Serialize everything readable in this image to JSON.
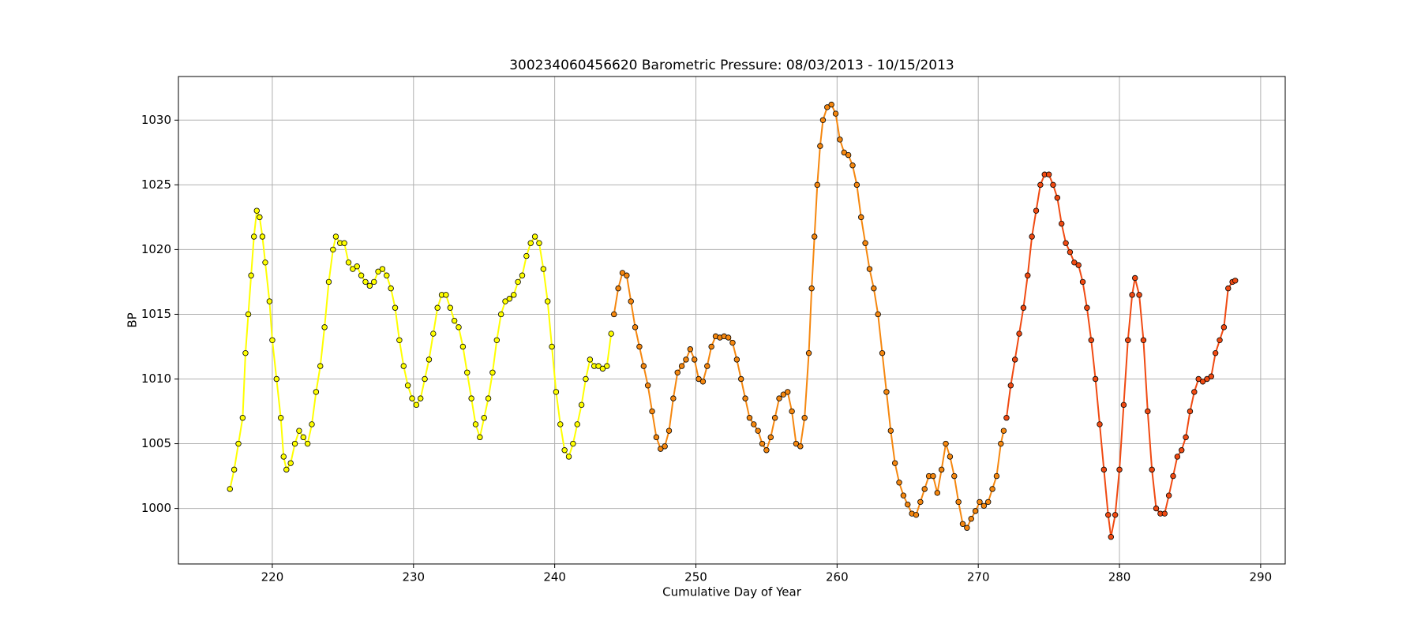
{
  "chart_data": {
    "type": "scatter_line",
    "title": "300234060456620 Barometric Pressure: 08/03/2013 - 10/15/2013",
    "x_label": "Cumulative Day of Year",
    "y_label": "BP",
    "xlim": [
      213.35,
      291.74
    ],
    "xticks": [
      220,
      230,
      240,
      250,
      260,
      270,
      280,
      290
    ],
    "ylim": [
      995.71,
      1033.37
    ],
    "yticks": [
      1000,
      1005,
      1010,
      1015,
      1020,
      1025,
      1030
    ],
    "grid": true,
    "series": [
      {
        "color": "#ffff00",
        "x": [
          217.0,
          217.3,
          217.6,
          217.9,
          218.1,
          218.3,
          218.5,
          218.7,
          218.9,
          219.1,
          219.3,
          219.5,
          219.8,
          220.0,
          220.3,
          220.6,
          220.8,
          221.0,
          221.3,
          221.6,
          221.9,
          222.2,
          222.5,
          222.8,
          223.1,
          223.4,
          223.7,
          224.0,
          224.3,
          224.5,
          224.8,
          225.1,
          225.4,
          225.7,
          226.0,
          226.3,
          226.6,
          226.9,
          227.2,
          227.5,
          227.8,
          228.1,
          228.4,
          228.7,
          229.0,
          229.3,
          229.6,
          229.9,
          230.2,
          230.5,
          230.8,
          231.1,
          231.4,
          231.7,
          232.0,
          232.3,
          232.6,
          232.9,
          233.2,
          233.5,
          233.8,
          234.1,
          234.4,
          234.7,
          235.0,
          235.3,
          235.6,
          235.9,
          236.2,
          236.5,
          236.8,
          237.1,
          237.4,
          237.7,
          238.0,
          238.3,
          238.6,
          238.9,
          239.2,
          239.5,
          239.8,
          240.1,
          240.4,
          240.7,
          241.0,
          241.3,
          241.6,
          241.9,
          242.2,
          242.5,
          242.8,
          243.1,
          243.4,
          243.7,
          244.0
        ],
        "values": [
          1001.5,
          1003,
          1005,
          1007,
          1012,
          1015,
          1018,
          1021,
          1023,
          1022.5,
          1021,
          1019,
          1016,
          1013,
          1010,
          1007,
          1004,
          1003,
          1003.5,
          1005,
          1006,
          1005.5,
          1005,
          1006.5,
          1009,
          1011,
          1014,
          1017.5,
          1020,
          1021,
          1020.5,
          1020.5,
          1019,
          1018.5,
          1018.7,
          1018,
          1017.5,
          1017.2,
          1017.5,
          1018.3,
          1018.5,
          1018,
          1017,
          1015.5,
          1013,
          1011,
          1009.5,
          1008.5,
          1008,
          1008.5,
          1010,
          1011.5,
          1013.5,
          1015.5,
          1016.5,
          1016.5,
          1015.5,
          1014.5,
          1014,
          1012.5,
          1010.5,
          1008.5,
          1006.5,
          1005.5,
          1007,
          1008.5,
          1010.5,
          1013,
          1015,
          1016,
          1016.2,
          1016.5,
          1017.5,
          1018,
          1019.5,
          1020.5,
          1021,
          1020.5,
          1018.5,
          1016,
          1012.5,
          1009,
          1006.5,
          1004.5,
          1004,
          1005,
          1006.5,
          1008,
          1010,
          1011.5,
          1011,
          1011,
          1010.8,
          1011,
          1013.5
        ]
      },
      {
        "color": "#f5870f",
        "x": [
          244.2,
          244.5,
          244.8,
          245.1,
          245.4,
          245.7,
          246.0,
          246.3,
          246.6,
          246.9,
          247.2,
          247.5,
          247.8,
          248.1,
          248.4,
          248.7,
          249.0,
          249.3,
          249.6,
          249.9,
          250.2,
          250.5,
          250.8,
          251.1,
          251.4,
          251.7,
          252.0,
          252.3,
          252.6,
          252.9,
          253.2,
          253.5,
          253.8,
          254.1,
          254.4,
          254.7,
          255.0,
          255.3,
          255.6,
          255.9,
          256.2,
          256.5,
          256.8,
          257.1,
          257.4,
          257.7,
          258.0,
          258.2,
          258.4,
          258.6,
          258.8,
          259.0,
          259.3,
          259.6,
          259.9,
          260.2,
          260.5,
          260.8,
          261.1,
          261.4,
          261.7,
          262.0,
          262.3,
          262.6,
          262.9,
          263.2,
          263.5,
          263.8,
          264.1,
          264.4,
          264.7,
          265.0,
          265.3,
          265.6,
          265.9,
          266.2,
          266.5,
          266.8,
          267.1,
          267.4,
          267.7,
          268.0,
          268.3,
          268.6,
          268.9,
          269.2,
          269.5,
          269.8,
          270.1,
          270.4,
          270.7,
          271.0,
          271.3,
          271.6,
          271.8
        ],
        "values": [
          1015,
          1017,
          1018.2,
          1018,
          1016,
          1014,
          1012.5,
          1011,
          1009.5,
          1007.5,
          1005.5,
          1004.6,
          1004.8,
          1006,
          1008.5,
          1010.5,
          1011,
          1011.5,
          1012.3,
          1011.5,
          1010,
          1009.8,
          1011,
          1012.5,
          1013.3,
          1013.2,
          1013.3,
          1013.2,
          1012.8,
          1011.5,
          1010,
          1008.5,
          1007,
          1006.5,
          1006,
          1005,
          1004.5,
          1005.5,
          1007,
          1008.5,
          1008.8,
          1009,
          1007.5,
          1005,
          1004.8,
          1007,
          1012,
          1017,
          1021,
          1025,
          1028,
          1030,
          1031,
          1031.2,
          1030.5,
          1028.5,
          1027.5,
          1027.3,
          1026.5,
          1025,
          1022.5,
          1020.5,
          1018.5,
          1017,
          1015,
          1012,
          1009,
          1006,
          1003.5,
          1002,
          1001,
          1000.3,
          999.6,
          999.5,
          1000.5,
          1001.5,
          1002.5,
          1002.5,
          1001.2,
          1003,
          1005,
          1004,
          1002.5,
          1000.5,
          998.8,
          998.5,
          999.2,
          999.8,
          1000.5,
          1000.2,
          1000.5,
          1001.5,
          1002.5,
          1005,
          1006
        ]
      },
      {
        "color": "#f04a12",
        "x": [
          272.0,
          272.3,
          272.6,
          272.9,
          273.2,
          273.5,
          273.8,
          274.1,
          274.4,
          274.7,
          275.0,
          275.3,
          275.6,
          275.9,
          276.2,
          276.5,
          276.8,
          277.1,
          277.4,
          277.7,
          278.0,
          278.3,
          278.6,
          278.9,
          279.2,
          279.4,
          279.7,
          280.0,
          280.3,
          280.6,
          280.9,
          281.1,
          281.4,
          281.7,
          282.0,
          282.3,
          282.6,
          282.9,
          283.2,
          283.5,
          283.8,
          284.1,
          284.4,
          284.7,
          285.0,
          285.3,
          285.6,
          285.9,
          286.2,
          286.5,
          286.8,
          287.1,
          287.4,
          287.7,
          288.0,
          288.2
        ],
        "values": [
          1007,
          1009.5,
          1011.5,
          1013.5,
          1015.5,
          1018,
          1021,
          1023,
          1025,
          1025.8,
          1025.8,
          1025,
          1024,
          1022,
          1020.5,
          1019.8,
          1019,
          1018.8,
          1017.5,
          1015.5,
          1013,
          1010,
          1006.5,
          1003,
          999.5,
          997.8,
          999.5,
          1003,
          1008,
          1013,
          1016.5,
          1017.8,
          1016.5,
          1013,
          1007.5,
          1003,
          1000,
          999.6,
          999.6,
          1001,
          1002.5,
          1004,
          1004.5,
          1005.5,
          1007.5,
          1009,
          1010,
          1009.8,
          1010,
          1010.2,
          1012,
          1013,
          1014,
          1017,
          1017.5,
          1017.6
        ]
      }
    ]
  }
}
